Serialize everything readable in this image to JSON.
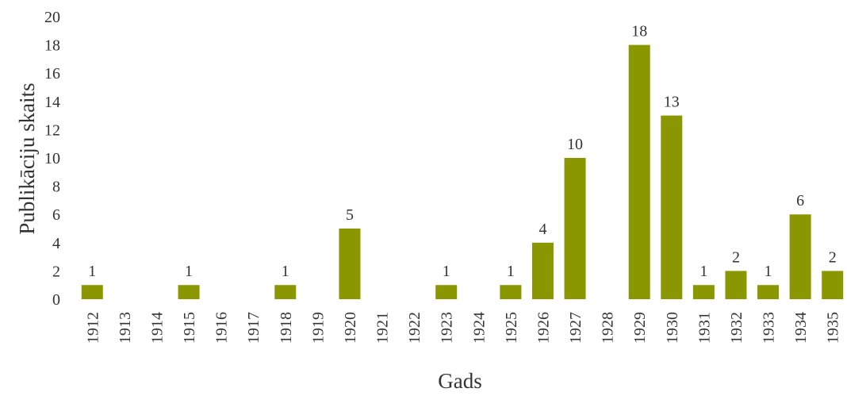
{
  "chart_data": {
    "type": "bar",
    "xlabel": "Gads",
    "ylabel": "Publikāciju skaits",
    "ylim": [
      0,
      20
    ],
    "yticks": [
      0,
      2,
      4,
      6,
      8,
      10,
      12,
      14,
      16,
      18,
      20
    ],
    "grid": false,
    "bar_color": "#8b9700",
    "categories": [
      "1912",
      "1913",
      "1914",
      "1915",
      "1916",
      "1917",
      "1918",
      "1919",
      "1920",
      "1921",
      "1922",
      "1923",
      "1924",
      "1925",
      "1926",
      "1927",
      "1928",
      "1929",
      "1930",
      "1931",
      "1932",
      "1933",
      "1934",
      "1935"
    ],
    "values": [
      1,
      0,
      0,
      1,
      0,
      0,
      1,
      0,
      5,
      0,
      0,
      1,
      0,
      1,
      4,
      10,
      0,
      18,
      13,
      1,
      2,
      1,
      6,
      2
    ],
    "data_labels": [
      "1",
      "",
      "",
      "1",
      "",
      "",
      "1",
      "",
      "5",
      "",
      "",
      "1",
      "",
      "1",
      "4",
      "10",
      "",
      "18",
      "13",
      "1",
      "2",
      "1",
      "6",
      "2"
    ]
  }
}
